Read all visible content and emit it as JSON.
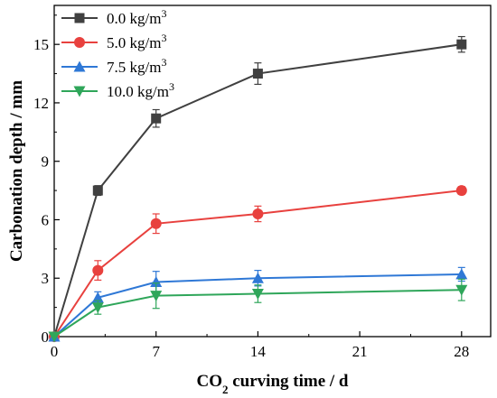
{
  "chart_data": {
    "type": "line",
    "xlabel": "CO",
    "xlabel_sub": "2",
    "xlabel_rest": " curving time / d",
    "ylabel": "Carbonation depth / mm",
    "xlim": [
      0,
      30
    ],
    "ylim": [
      0,
      17
    ],
    "x_ticks": [
      0,
      7,
      14,
      21,
      28
    ],
    "y_ticks": [
      0,
      3,
      6,
      9,
      12,
      15
    ],
    "x_tick_labels": [
      "0",
      "7",
      "14",
      "21",
      "28"
    ],
    "y_tick_labels": [
      "0",
      "3",
      "6",
      "9",
      "12",
      "15"
    ],
    "grid": false,
    "legend_position": "top-left",
    "series": [
      {
        "name_base": "0.0 kg/m",
        "name_sup": "3",
        "color": "#404040",
        "line_color": "#404040",
        "marker": "square",
        "x": [
          0,
          3,
          7,
          14,
          28
        ],
        "y": [
          0,
          7.5,
          11.2,
          13.5,
          15.0
        ],
        "err": [
          0,
          0.25,
          0.45,
          0.55,
          0.4
        ]
      },
      {
        "name_base": "5.0 kg/m",
        "name_sup": "3",
        "color": "#e8413e",
        "line_color": "#e8413e",
        "marker": "circle",
        "x": [
          0,
          3,
          7,
          14,
          28
        ],
        "y": [
          0,
          3.4,
          5.8,
          6.3,
          7.5
        ],
        "err": [
          0,
          0.5,
          0.5,
          0.4,
          0.2
        ]
      },
      {
        "name_base": "7.5 kg/m",
        "name_sup": "3",
        "color": "#2f78d6",
        "line_color": "#2f78d6",
        "marker": "triangle-up",
        "x": [
          0,
          3,
          7,
          14,
          28
        ],
        "y": [
          0,
          2.0,
          2.8,
          3.0,
          3.2
        ],
        "err": [
          0,
          0.3,
          0.55,
          0.4,
          0.35
        ]
      },
      {
        "name_base": "10.0 kg/m",
        "name_sup": "3",
        "color": "#2fa65a",
        "line_color": "#2fa65a",
        "marker": "triangle-down",
        "x": [
          0,
          3,
          7,
          14,
          28
        ],
        "y": [
          0,
          1.5,
          2.1,
          2.2,
          2.4
        ],
        "err": [
          0,
          0.35,
          0.65,
          0.45,
          0.55
        ]
      }
    ]
  }
}
